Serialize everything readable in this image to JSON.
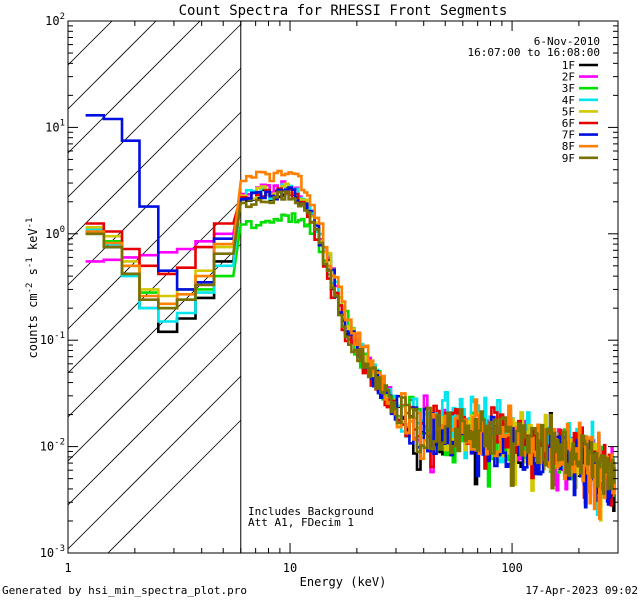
{
  "chart_data": {
    "type": "line",
    "title": "Count Spectra for RHESSI Front Segments",
    "xlabel": "Energy (keV)",
    "ylabel": "counts cm",
    "ylabel_parts": {
      "base": "counts cm",
      "exp1": "-2",
      "mid1": " s",
      "exp2": "-1",
      "mid2": " keV",
      "exp3": "-1"
    },
    "x_scale": "log",
    "y_scale": "log",
    "xlim": [
      1,
      300
    ],
    "ylim": [
      0.001,
      100
    ],
    "x_ticks": [
      {
        "value": 1,
        "label": "1"
      },
      {
        "value": 10,
        "label": "10"
      },
      {
        "value": 100,
        "label": "100"
      }
    ],
    "y_ticks": [
      {
        "value": 0.001,
        "base": "10",
        "exp": "-3"
      },
      {
        "value": 0.01,
        "base": "10",
        "exp": "-2"
      },
      {
        "value": 0.1,
        "base": "10",
        "exp": "-1"
      },
      {
        "value": 1,
        "base": "10",
        "exp": "0"
      },
      {
        "value": 10,
        "base": "10",
        "exp": "1"
      },
      {
        "value": 100,
        "base": "10",
        "exp": "2"
      }
    ],
    "date": "6-Nov-2010",
    "time_range": "16:07:00 to 16:08:00",
    "hatched_region_xmax_kev": 6,
    "annotations": [
      "Includes Background",
      "Att A1, FDecim  1"
    ],
    "series": [
      {
        "name": "1F",
        "color": "#000000",
        "profile": [
          1.05,
          0.75,
          0.42,
          0.2,
          0.12,
          0.16,
          0.25,
          0.55
        ],
        "peak": 2.5,
        "fall": 1.0,
        "tail_level": 1.0,
        "tail_bump": 1.0,
        "final": 0.0025,
        "jitter": 0.3,
        "seed": 11
      },
      {
        "name": "2F",
        "color": "#ff00ff",
        "profile": [
          0.55,
          0.57,
          0.6,
          0.63,
          0.67,
          0.72,
          0.85,
          1.0
        ],
        "peak": 2.8,
        "fall": 1.02,
        "tail_level": 1.1,
        "tail_bump": 1.0,
        "final": 0.0022,
        "jitter": 0.28,
        "seed": 23
      },
      {
        "name": "3F",
        "color": "#00e000",
        "profile": [
          1.0,
          0.85,
          0.5,
          0.28,
          0.2,
          0.24,
          0.3,
          0.4
        ],
        "peak": 1.45,
        "fall": 0.9,
        "tail_level": 0.95,
        "tail_bump": 1.0,
        "final": 0.0012,
        "jitter": 0.32,
        "seed": 37
      },
      {
        "name": "4F",
        "color": "#00e5ee",
        "profile": [
          1.1,
          0.8,
          0.4,
          0.2,
          0.15,
          0.18,
          0.28,
          0.5
        ],
        "peak": 2.6,
        "fall": 1.0,
        "tail_level": 1.1,
        "tail_bump": 1.3,
        "final": 0.0025,
        "jitter": 0.3,
        "seed": 41
      },
      {
        "name": "5F",
        "color": "#d2c800",
        "profile": [
          1.15,
          0.95,
          0.55,
          0.3,
          0.26,
          0.3,
          0.45,
          0.75
        ],
        "peak": 2.7,
        "fall": 1.0,
        "tail_level": 1.05,
        "tail_bump": 1.0,
        "final": 0.0025,
        "jitter": 0.3,
        "seed": 53
      },
      {
        "name": "6F",
        "color": "#e60000",
        "profile": [
          1.25,
          1.05,
          0.72,
          0.5,
          0.42,
          0.48,
          0.75,
          1.25
        ],
        "peak": 2.6,
        "fall": 1.06,
        "tail_level": 1.15,
        "tail_bump": 1.0,
        "final": 0.0025,
        "jitter": 0.28,
        "seed": 67
      },
      {
        "name": "7F",
        "color": "#0010e0",
        "profile": [
          13.0,
          12.0,
          7.5,
          1.8,
          0.45,
          0.3,
          0.35,
          0.9
        ],
        "peak": 2.5,
        "fall": 1.0,
        "tail_level": 0.95,
        "tail_bump": 1.0,
        "final": 0.0018,
        "jitter": 0.32,
        "seed": 79
      },
      {
        "name": "8F",
        "color": "#ff8000",
        "profile": [
          1.05,
          0.82,
          0.5,
          0.26,
          0.22,
          0.27,
          0.4,
          0.8
        ],
        "peak": 3.7,
        "fall": 1.03,
        "tail_level": 1.05,
        "tail_bump": 1.0,
        "final": 0.0025,
        "jitter": 0.3,
        "seed": 83
      },
      {
        "name": "9F",
        "color": "#7a7000",
        "profile": [
          1.0,
          0.75,
          0.42,
          0.24,
          0.2,
          0.24,
          0.33,
          0.65
        ],
        "peak": 2.3,
        "fall": 1.0,
        "tail_level": 1.05,
        "tail_bump": 1.0,
        "final": 0.0024,
        "jitter": 0.3,
        "seed": 97
      }
    ]
  },
  "footer": {
    "generated_by": "Generated by hsi_min_spectra_plot.pro",
    "timestamp": "17-Apr-2023 09:02"
  }
}
